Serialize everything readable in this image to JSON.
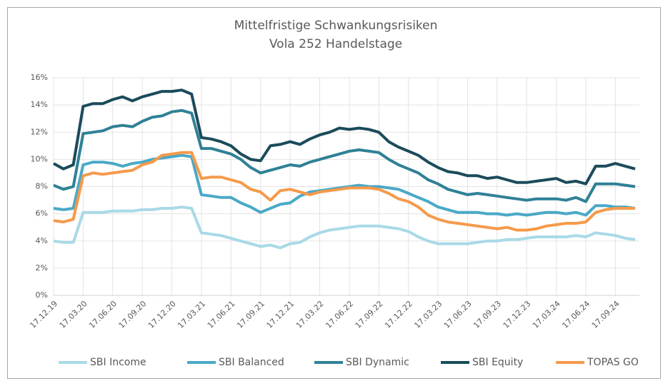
{
  "chart_data": {
    "type": "line",
    "title": "Mittelfristige Schwankungsrisiken",
    "subtitle": "Vola 252 Handelstage",
    "x": [
      "17.12.19",
      "17.01.20",
      "17.02.20",
      "17.03.20",
      "17.04.20",
      "17.05.20",
      "17.06.20",
      "17.07.20",
      "17.08.20",
      "17.09.20",
      "17.10.20",
      "17.11.20",
      "17.12.20",
      "17.01.21",
      "17.02.21",
      "17.03.21",
      "17.04.21",
      "17.05.21",
      "17.06.21",
      "17.07.21",
      "17.08.21",
      "17.09.21",
      "17.10.21",
      "17.11.21",
      "17.12.21",
      "17.01.22",
      "17.02.22",
      "17.03.22",
      "17.04.22",
      "17.05.22",
      "17.06.22",
      "17.07.22",
      "17.08.22",
      "17.09.22",
      "17.10.22",
      "17.11.22",
      "17.12.22",
      "17.01.23",
      "17.02.23",
      "17.03.23",
      "17.04.23",
      "17.05.23",
      "17.06.23",
      "17.07.23",
      "17.08.23",
      "17.09.23",
      "17.10.23",
      "17.11.23",
      "17.12.23",
      "17.01.24",
      "17.02.24",
      "17.03.24",
      "17.04.24",
      "17.05.24",
      "17.06.24",
      "17.07.24",
      "17.08.24",
      "17.09.24",
      "17.10.24",
      "17.11.24"
    ],
    "xticks": [
      "17.12.19",
      "17.03.20",
      "17.06.20",
      "17.09.20",
      "17.12.20",
      "17.03.21",
      "17.06.21",
      "17.09.21",
      "17.12.21",
      "17.03.22",
      "17.06.22",
      "17.09.22",
      "17.12.22",
      "17.03.23",
      "17.06.23",
      "17.09.23",
      "17.12.23",
      "17.03.24",
      "17.06.24",
      "17.09.24"
    ],
    "ylim": [
      0,
      16
    ],
    "yticks": [
      {
        "value": 0,
        "label": "0%"
      },
      {
        "value": 2,
        "label": "2%"
      },
      {
        "value": 4,
        "label": "4%"
      },
      {
        "value": 6,
        "label": "6%"
      },
      {
        "value": 8,
        "label": "8%"
      },
      {
        "value": 10,
        "label": "10%"
      },
      {
        "value": 12,
        "label": "12%"
      },
      {
        "value": 14,
        "label": "14%"
      },
      {
        "value": 16,
        "label": "16%"
      }
    ],
    "grid": true,
    "legend": "bottom",
    "series": [
      {
        "name": "SBI Income",
        "color": "#a9d9e7",
        "values": [
          4.0,
          3.9,
          3.9,
          6.1,
          6.1,
          6.1,
          6.2,
          6.2,
          6.2,
          6.3,
          6.3,
          6.4,
          6.4,
          6.5,
          6.4,
          4.6,
          4.5,
          4.4,
          4.2,
          4.0,
          3.8,
          3.6,
          3.7,
          3.5,
          3.8,
          3.9,
          4.3,
          4.6,
          4.8,
          4.9,
          5.0,
          5.1,
          5.1,
          5.1,
          5.0,
          4.9,
          4.7,
          4.3,
          4.0,
          3.8,
          3.8,
          3.8,
          3.8,
          3.9,
          4.0,
          4.0,
          4.1,
          4.1,
          4.2,
          4.3,
          4.3,
          4.3,
          4.3,
          4.4,
          4.3,
          4.6,
          4.5,
          4.4,
          4.2,
          4.1
        ]
      },
      {
        "name": "SBI Balanced",
        "color": "#4aa9c7",
        "values": [
          6.4,
          6.3,
          6.4,
          9.6,
          9.8,
          9.8,
          9.7,
          9.5,
          9.7,
          9.8,
          10.0,
          10.1,
          10.2,
          10.3,
          10.2,
          7.4,
          7.3,
          7.2,
          7.2,
          6.8,
          6.5,
          6.1,
          6.4,
          6.7,
          6.8,
          7.3,
          7.6,
          7.7,
          7.8,
          7.9,
          8.0,
          8.1,
          8.0,
          8.0,
          7.9,
          7.8,
          7.5,
          7.2,
          6.9,
          6.5,
          6.3,
          6.1,
          6.1,
          6.1,
          6.0,
          6.0,
          5.9,
          6.0,
          5.9,
          6.0,
          6.1,
          6.1,
          6.0,
          6.1,
          5.9,
          6.6,
          6.6,
          6.5,
          6.5,
          6.4
        ]
      },
      {
        "name": "SBI Dynamic",
        "color": "#2f8196",
        "values": [
          8.1,
          7.8,
          8.0,
          11.9,
          12.0,
          12.1,
          12.4,
          12.5,
          12.4,
          12.8,
          13.1,
          13.2,
          13.5,
          13.6,
          13.4,
          10.8,
          10.8,
          10.6,
          10.4,
          10.0,
          9.4,
          9.0,
          9.2,
          9.4,
          9.6,
          9.5,
          9.8,
          10.0,
          10.2,
          10.4,
          10.6,
          10.7,
          10.6,
          10.5,
          10.0,
          9.6,
          9.3,
          9.0,
          8.5,
          8.2,
          7.8,
          7.6,
          7.4,
          7.5,
          7.4,
          7.3,
          7.2,
          7.1,
          7.0,
          7.1,
          7.1,
          7.1,
          7.0,
          7.2,
          6.9,
          8.2,
          8.2,
          8.2,
          8.1,
          8.0
        ]
      },
      {
        "name": "SBI Equity",
        "color": "#1b4b5b",
        "values": [
          9.7,
          9.3,
          9.6,
          13.9,
          14.1,
          14.1,
          14.4,
          14.6,
          14.3,
          14.6,
          14.8,
          15.0,
          15.0,
          15.1,
          14.8,
          11.6,
          11.5,
          11.3,
          11.0,
          10.4,
          10.0,
          9.9,
          11.0,
          11.1,
          11.3,
          11.1,
          11.5,
          11.8,
          12.0,
          12.3,
          12.2,
          12.3,
          12.2,
          12.0,
          11.3,
          10.9,
          10.6,
          10.3,
          9.8,
          9.4,
          9.1,
          9.0,
          8.8,
          8.8,
          8.6,
          8.7,
          8.5,
          8.3,
          8.3,
          8.4,
          8.5,
          8.6,
          8.3,
          8.4,
          8.2,
          9.5,
          9.5,
          9.7,
          9.5,
          9.3
        ]
      },
      {
        "name": "TOPAS GO",
        "color": "#f59a4b",
        "values": [
          5.5,
          5.4,
          5.6,
          8.8,
          9.0,
          8.9,
          9.0,
          9.1,
          9.2,
          9.6,
          9.8,
          10.3,
          10.4,
          10.5,
          10.5,
          8.6,
          8.7,
          8.7,
          8.5,
          8.3,
          7.8,
          7.6,
          7.0,
          7.7,
          7.8,
          7.6,
          7.4,
          7.6,
          7.7,
          7.8,
          7.9,
          7.9,
          7.9,
          7.8,
          7.5,
          7.1,
          6.9,
          6.5,
          5.9,
          5.6,
          5.4,
          5.3,
          5.2,
          5.1,
          5.0,
          4.9,
          5.0,
          4.8,
          4.8,
          4.9,
          5.1,
          5.2,
          5.3,
          5.3,
          5.4,
          6.1,
          6.3,
          6.4,
          6.4,
          6.4
        ]
      }
    ]
  }
}
